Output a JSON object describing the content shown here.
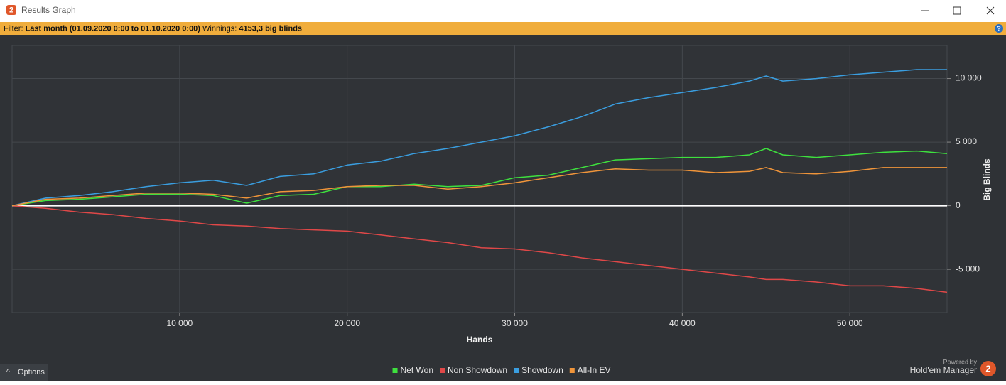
{
  "window": {
    "title": "Results Graph"
  },
  "filter": {
    "label": "Filter:",
    "period": "Last month (01.09.2020 0:00 to 01.10.2020 0:00)",
    "winnings_label": "Winnings:",
    "winnings": "4153,3 big blinds"
  },
  "options": "Options",
  "branding": {
    "powered_by": "Powered by",
    "product": "Hold'em Manager",
    "logo": "2"
  },
  "chart_data": {
    "type": "line",
    "x_label": "Hands",
    "y_label": "Big Blinds",
    "x": [
      0,
      2000,
      4000,
      6000,
      8000,
      10000,
      12000,
      14000,
      16000,
      18000,
      20000,
      22000,
      24000,
      26000,
      28000,
      30000,
      32000,
      34000,
      36000,
      38000,
      40000,
      42000,
      44000,
      45000,
      46000,
      48000,
      50000,
      52000,
      54000,
      55800
    ],
    "series": [
      {
        "name": "Net Won",
        "color": "#3ee03e",
        "values": [
          0,
          400,
          500,
          700,
          900,
          900,
          800,
          200,
          800,
          900,
          1500,
          1500,
          1700,
          1500,
          1600,
          2200,
          2400,
          3000,
          3600,
          3700,
          3800,
          3800,
          4000,
          4500,
          4000,
          3800,
          4000,
          4200,
          4300,
          4100
        ]
      },
      {
        "name": "Non Showdown",
        "color": "#e04848",
        "values": [
          0,
          -200,
          -500,
          -700,
          -1000,
          -1200,
          -1500,
          -1600,
          -1800,
          -1900,
          -2000,
          -2300,
          -2600,
          -2900,
          -3300,
          -3400,
          -3700,
          -4100,
          -4400,
          -4700,
          -5000,
          -5300,
          -5600,
          -5800,
          -5800,
          -6000,
          -6300,
          -6300,
          -6500,
          -6800
        ]
      },
      {
        "name": "Showdown",
        "color": "#3a9ee0",
        "values": [
          0,
          600,
          800,
          1100,
          1500,
          1800,
          2000,
          1600,
          2300,
          2500,
          3200,
          3500,
          4100,
          4500,
          5000,
          5500,
          6200,
          7000,
          8000,
          8500,
          8900,
          9300,
          9800,
          10200,
          9800,
          10000,
          10300,
          10500,
          10700,
          10700
        ]
      },
      {
        "name": "All-In EV",
        "color": "#f0953a",
        "values": [
          0,
          500,
          600,
          800,
          1000,
          1000,
          900,
          600,
          1100,
          1200,
          1500,
          1600,
          1600,
          1300,
          1500,
          1800,
          2200,
          2600,
          2900,
          2800,
          2800,
          2600,
          2700,
          3000,
          2600,
          2500,
          2700,
          3000,
          3000,
          3000
        ]
      }
    ],
    "xlim": [
      0,
      55800
    ],
    "ylim": [
      -8400,
      12600
    ],
    "xticks": [
      {
        "value": 10000,
        "label": "10 000"
      },
      {
        "value": 20000,
        "label": "20 000"
      },
      {
        "value": 30000,
        "label": "30 000"
      },
      {
        "value": 40000,
        "label": "40 000"
      },
      {
        "value": 50000,
        "label": "50 000"
      }
    ],
    "yticks": [
      {
        "value": -5000,
        "label": "-5 000"
      },
      0,
      {
        "value": 5000,
        "label": "5 000"
      },
      {
        "value": 10000,
        "label": "10 000"
      }
    ],
    "grid": true
  }
}
